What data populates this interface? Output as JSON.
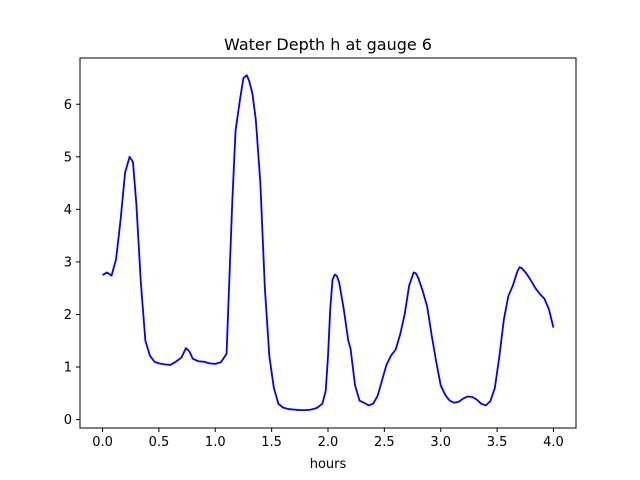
{
  "chart_data": {
    "type": "line",
    "title": "Water Depth h at gauge 6",
    "xlabel": "hours",
    "ylabel": "",
    "xlim": [
      -0.2,
      4.2
    ],
    "ylim": [
      -0.16,
      6.88
    ],
    "xticks": [
      0.0,
      0.5,
      1.0,
      1.5,
      2.0,
      2.5,
      3.0,
      3.5,
      4.0
    ],
    "xtick_labels": [
      "0.0",
      "0.5",
      "1.0",
      "1.5",
      "2.0",
      "2.5",
      "3.0",
      "3.5",
      "4.0"
    ],
    "yticks": [
      0,
      1,
      2,
      3,
      4,
      5,
      6
    ],
    "ytick_labels": [
      "0",
      "1",
      "2",
      "3",
      "4",
      "5",
      "6"
    ],
    "grid": false,
    "series": [
      {
        "color": "#0000ff",
        "x": [
          0.0,
          0.04,
          0.08,
          0.12,
          0.16,
          0.2,
          0.24,
          0.27,
          0.3,
          0.34,
          0.38,
          0.42,
          0.46,
          0.5,
          0.55,
          0.6,
          0.65,
          0.7,
          0.74,
          0.77,
          0.8,
          0.85,
          0.9,
          0.95,
          1.0,
          1.05,
          1.1,
          1.15,
          1.18,
          1.2,
          1.22,
          1.25,
          1.28,
          1.3,
          1.33,
          1.36,
          1.4,
          1.44,
          1.48,
          1.52,
          1.56,
          1.6,
          1.65,
          1.7,
          1.75,
          1.8,
          1.85,
          1.9,
          1.95,
          1.98,
          2.0,
          2.02,
          2.04,
          2.06,
          2.08,
          2.1,
          2.14,
          2.18,
          2.2,
          2.24,
          2.28,
          2.32,
          2.36,
          2.4,
          2.44,
          2.48,
          2.52,
          2.56,
          2.6,
          2.64,
          2.68,
          2.72,
          2.76,
          2.78,
          2.8,
          2.84,
          2.88,
          2.92,
          2.96,
          3.0,
          3.04,
          3.08,
          3.12,
          3.16,
          3.2,
          3.24,
          3.28,
          3.32,
          3.36,
          3.4,
          3.44,
          3.48,
          3.52,
          3.56,
          3.6,
          3.64,
          3.68,
          3.7,
          3.72,
          3.76,
          3.8,
          3.84,
          3.88,
          3.92,
          3.96,
          4.0
        ],
        "values": [
          2.75,
          2.8,
          2.74,
          3.05,
          3.8,
          4.7,
          5.0,
          4.9,
          4.1,
          2.6,
          1.5,
          1.22,
          1.1,
          1.07,
          1.05,
          1.04,
          1.1,
          1.18,
          1.36,
          1.3,
          1.16,
          1.11,
          1.1,
          1.07,
          1.06,
          1.09,
          1.25,
          4.1,
          5.5,
          5.8,
          6.1,
          6.5,
          6.55,
          6.45,
          6.2,
          5.7,
          4.5,
          2.5,
          1.2,
          0.6,
          0.3,
          0.23,
          0.2,
          0.19,
          0.18,
          0.18,
          0.19,
          0.22,
          0.3,
          0.55,
          1.2,
          2.1,
          2.66,
          2.76,
          2.73,
          2.6,
          2.1,
          1.5,
          1.35,
          0.65,
          0.36,
          0.32,
          0.27,
          0.3,
          0.45,
          0.75,
          1.05,
          1.22,
          1.33,
          1.62,
          2.0,
          2.55,
          2.8,
          2.78,
          2.7,
          2.45,
          2.15,
          1.6,
          1.1,
          0.65,
          0.47,
          0.36,
          0.32,
          0.34,
          0.4,
          0.44,
          0.43,
          0.38,
          0.3,
          0.27,
          0.35,
          0.6,
          1.2,
          1.9,
          2.35,
          2.55,
          2.82,
          2.9,
          2.88,
          2.78,
          2.65,
          2.5,
          2.39,
          2.3,
          2.1,
          1.75
        ]
      }
    ]
  }
}
